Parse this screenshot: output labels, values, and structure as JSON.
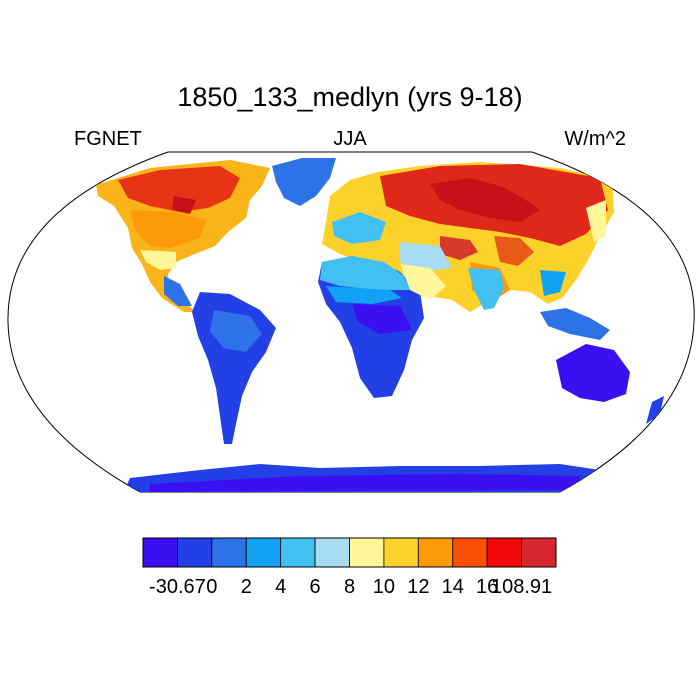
{
  "title": "1850_133_medlyn (yrs 9-18)",
  "left_label": "FGNET",
  "center_label": "JJA",
  "right_label": "W/m^2",
  "colorbar": {
    "colors": [
      "#3a10f2",
      "#2240e6",
      "#2e72e8",
      "#12a2f4",
      "#42c0f2",
      "#a8dcf2",
      "#fff79a",
      "#fcd22a",
      "#fd9a08",
      "#fc4e04",
      "#f00a0a",
      "#d4282e"
    ],
    "labels": [
      "-30.67",
      "0",
      "2",
      "4",
      "6",
      "8",
      "10",
      "12",
      "14",
      "16",
      "108.91"
    ]
  }
}
